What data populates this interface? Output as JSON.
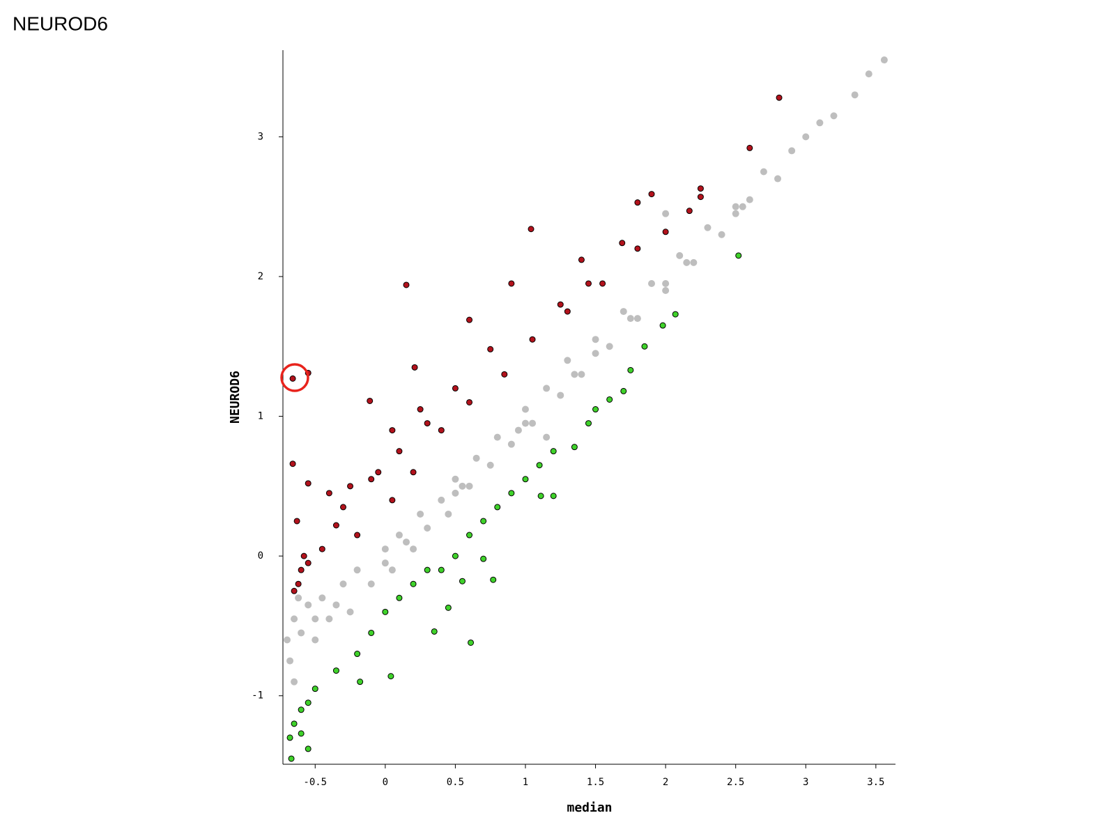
{
  "chart_data": {
    "type": "scatter",
    "title": "NEUROD6",
    "xlabel": "median",
    "ylabel": "NEUROD6",
    "xlim": [
      -0.73,
      3.64
    ],
    "ylim": [
      -1.49,
      3.62
    ],
    "xticks": [
      -0.5,
      0,
      0.5,
      1,
      1.5,
      2,
      2.5,
      3,
      3.5
    ],
    "yticks": [
      -1,
      0,
      1,
      2,
      3
    ],
    "series": [
      {
        "color": "#bebebe",
        "x": [
          -0.7,
          -0.68,
          -0.65,
          -0.6,
          -0.55,
          -0.5,
          -0.45,
          -0.4,
          -0.3,
          -0.25,
          -0.2,
          -0.1,
          0,
          0.05,
          0.1,
          0.2,
          0.25,
          0.3,
          0.4,
          0.45,
          0.5,
          0.6,
          0.65,
          0.75,
          0.8,
          0.9,
          1.0,
          1.05,
          1.15,
          1.25,
          1.3,
          1.4,
          1.5,
          1.6,
          1.7,
          1.8,
          1.9,
          2.0,
          2.1,
          2.2,
          2.3,
          2.4,
          2.5,
          2.6,
          2.7,
          2.8,
          2.9,
          3.0,
          3.1,
          3.2,
          3.35,
          3.45,
          3.56,
          1.15,
          2.0,
          -0.65,
          -0.62,
          -0.35,
          0.15,
          0.55,
          0.95,
          1.35,
          1.75,
          2.15,
          2.55,
          -0.5,
          0.0,
          0.5,
          1.0,
          1.5,
          2.0,
          2.5
        ],
        "y": [
          -0.6,
          -0.75,
          -0.45,
          -0.55,
          -0.35,
          -0.6,
          -0.3,
          -0.45,
          -0.2,
          -0.4,
          -0.1,
          -0.2,
          0.05,
          -0.1,
          0.15,
          0.05,
          0.3,
          0.2,
          0.4,
          0.3,
          0.55,
          0.5,
          0.7,
          0.65,
          0.85,
          0.8,
          1.05,
          0.95,
          1.2,
          1.15,
          1.4,
          1.3,
          1.55,
          1.5,
          1.75,
          1.7,
          1.95,
          1.9,
          2.15,
          2.1,
          2.35,
          2.3,
          2.5,
          2.55,
          2.75,
          2.7,
          2.9,
          3.0,
          3.1,
          3.15,
          3.3,
          3.45,
          3.55,
          0.85,
          2.45,
          -0.9,
          -0.3,
          -0.35,
          0.1,
          0.5,
          0.9,
          1.3,
          1.7,
          2.1,
          2.5,
          -0.45,
          -0.05,
          0.45,
          0.95,
          1.45,
          1.95,
          2.45
        ]
      },
      {
        "color": "#b2121c",
        "x": [
          -0.66,
          -0.55,
          -0.66,
          2.81,
          2.6,
          0.15,
          1.04,
          0.9,
          0.6,
          0.21,
          -0.11,
          1.9,
          1.8,
          2.25,
          2.25,
          2.17,
          1.4,
          1.69,
          1.45,
          1.25,
          0.75,
          0.5,
          0.3,
          0.1,
          -0.1,
          -0.3,
          -0.55,
          -0.4,
          -0.35,
          -0.2,
          0.05,
          0.2,
          0.4,
          0.6,
          0.85,
          1.05,
          1.3,
          1.55,
          1.8,
          2.0,
          -0.6,
          -0.62,
          -0.58,
          -0.55,
          -0.65,
          -0.63,
          -0.45,
          -0.25,
          -0.05,
          0.05,
          0.25
        ],
        "y": [
          1.27,
          1.31,
          0.66,
          3.28,
          2.92,
          1.94,
          2.34,
          1.95,
          1.69,
          1.35,
          1.11,
          2.59,
          2.53,
          2.63,
          2.57,
          2.47,
          2.12,
          2.24,
          1.95,
          1.8,
          1.48,
          1.2,
          0.95,
          0.75,
          0.55,
          0.35,
          0.52,
          0.45,
          0.22,
          0.15,
          0.4,
          0.6,
          0.9,
          1.1,
          1.3,
          1.55,
          1.75,
          1.95,
          2.2,
          2.32,
          -0.1,
          -0.2,
          0.0,
          -0.05,
          -0.25,
          0.25,
          0.05,
          0.5,
          0.6,
          0.9,
          1.05
        ]
      },
      {
        "color": "#3fd22a",
        "x": [
          2.52,
          2.07,
          1.98,
          1.85,
          1.75,
          1.7,
          1.6,
          1.5,
          1.45,
          1.35,
          1.2,
          1.1,
          1.0,
          0.9,
          1.11,
          0.8,
          0.7,
          0.6,
          0.5,
          0.4,
          0.3,
          0.2,
          0.1,
          0.0,
          -0.1,
          -0.2,
          -0.35,
          -0.5,
          -0.55,
          -0.6,
          -0.65,
          -0.68,
          -0.67,
          -0.55,
          -0.6,
          0.61,
          0.04,
          0.35,
          0.45,
          0.77,
          0.7,
          1.2,
          -0.18,
          0.55
        ],
        "y": [
          2.15,
          1.73,
          1.65,
          1.5,
          1.33,
          1.18,
          1.12,
          1.05,
          0.95,
          0.78,
          0.75,
          0.65,
          0.55,
          0.45,
          0.43,
          0.35,
          0.25,
          0.15,
          0.0,
          -0.1,
          -0.1,
          -0.2,
          -0.3,
          -0.4,
          -0.55,
          -0.7,
          -0.82,
          -0.95,
          -1.05,
          -1.1,
          -1.2,
          -1.3,
          -1.45,
          -1.38,
          -1.27,
          -0.62,
          -0.86,
          -0.54,
          -0.37,
          -0.17,
          -0.02,
          0.43,
          -0.9,
          -0.18
        ]
      }
    ]
  }
}
